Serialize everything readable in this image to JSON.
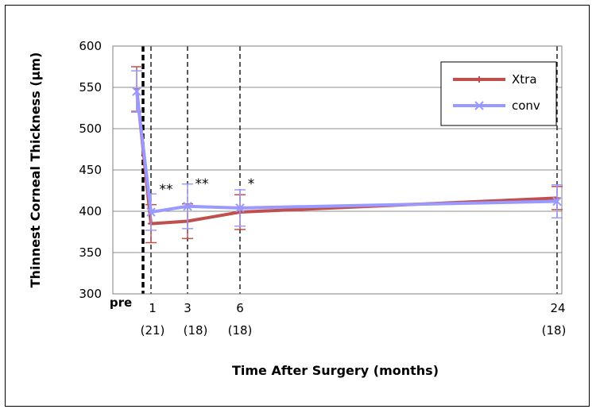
{
  "chart_data": {
    "type": "line",
    "ylabel": "Thinnest Corneal Thickness (μm)",
    "xlabel": "Time After Surgery (months)",
    "ylim": [
      300,
      600
    ],
    "yticks": [
      300,
      350,
      400,
      450,
      500,
      550,
      600
    ],
    "grid": "horizontal",
    "legend_position": "top-right",
    "x_categories": [
      {
        "label": "pre",
        "n": ""
      },
      {
        "label": "1",
        "n": "(21)"
      },
      {
        "label": "3",
        "n": "(18)"
      },
      {
        "label": "6",
        "n": "(18)"
      },
      {
        "label": "24",
        "n": "(18)"
      }
    ],
    "x_months": [
      -0.6,
      0,
      3,
      6,
      24
    ],
    "series": [
      {
        "name": "Xtra",
        "color": "#c0504d",
        "marker": "dash",
        "values": [
          548,
          385,
          388,
          399,
          416
        ],
        "error": [
          27,
          23,
          21,
          21,
          14
        ]
      },
      {
        "name": "conv",
        "color": "#9999ff",
        "marker": "x",
        "values": [
          545,
          399,
          406,
          404,
          412
        ],
        "error": [
          25,
          22,
          27,
          22,
          20
        ]
      }
    ],
    "significance": [
      {
        "month": 0,
        "label": "**"
      },
      {
        "month": 3,
        "label": "**"
      },
      {
        "month": 6,
        "label": "*"
      }
    ]
  }
}
